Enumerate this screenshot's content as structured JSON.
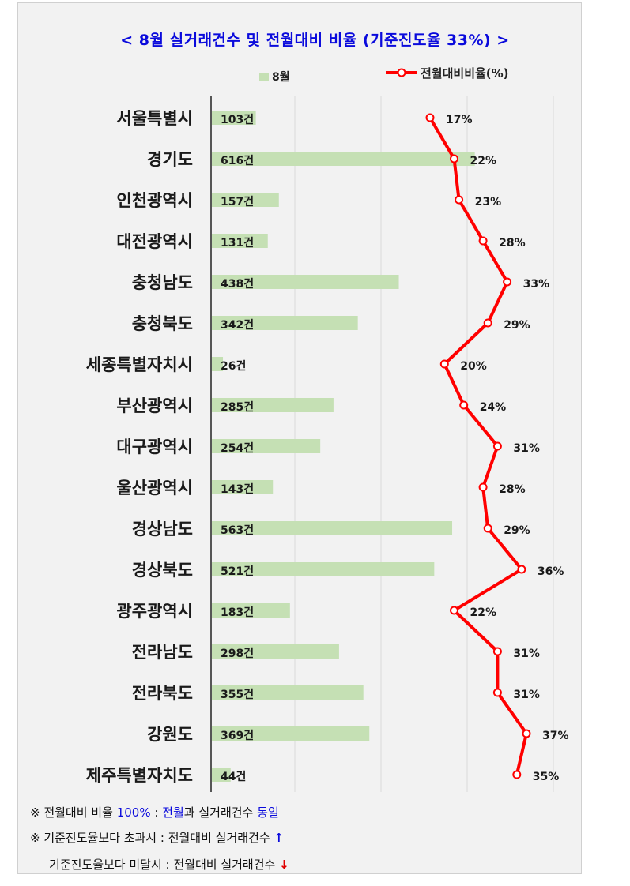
{
  "chart_data": {
    "type": "bar+line",
    "title": "< 8월 실거래건수 및 전월대비 비율 (기준진도율 33%) >",
    "legend": {
      "bar_label": "8월",
      "line_label": "전월대비비율(%)"
    },
    "categories": [
      "서울특별시",
      "경기도",
      "인천광역시",
      "대전광역시",
      "충청남도",
      "충청북도",
      "세종특별자치시",
      "부산광역시",
      "대구광역시",
      "울산광역시",
      "경상남도",
      "경상북도",
      "광주광역시",
      "전라남도",
      "전라북도",
      "강원도",
      "제주특별자치도"
    ],
    "bar_values": [
      103,
      616,
      157,
      131,
      438,
      342,
      26,
      285,
      254,
      143,
      563,
      521,
      183,
      298,
      355,
      369,
      44
    ],
    "bar_unit": "건",
    "line_values": [
      17,
      22,
      23,
      28,
      33,
      29,
      20,
      24,
      31,
      28,
      29,
      36,
      22,
      31,
      31,
      37,
      35
    ],
    "line_unit": "%",
    "colors": {
      "bar": "#c5e0b4",
      "line": "#ff0000",
      "marker_fill": "#ffffff",
      "title": "#0a0adc",
      "background": "#f2f2f2",
      "grid": "#d9d9d9"
    }
  },
  "notes": {
    "note1_prefix": "※ 전월대비 비율 ",
    "note1_value": "100%",
    "note1_colon": " : ",
    "note1_word1": "전월",
    "note1_word2": "과",
    "note1_mid": " 실거래건수 ",
    "note1_word3": "동일",
    "note2_text": "※ 기준진도율보다 초과시 : 전월대비 실거래건수 ",
    "note2_arrow": "↑",
    "note3_text": "기준진도율보다 미달시 : 전월대비 실거래건수 ",
    "note3_arrow": "↓"
  }
}
